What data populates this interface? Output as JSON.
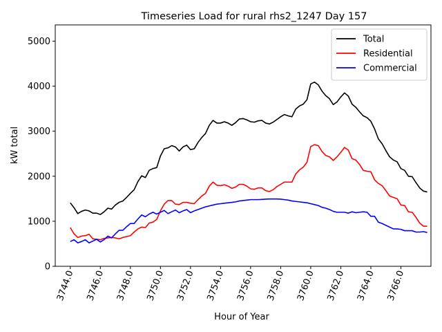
{
  "chart_data": {
    "type": "line",
    "title": "Timeseries Load for rural rhs2_1247  Day 157",
    "xlabel": "Hour of Year",
    "ylabel": "kW total",
    "xlim": [
      3743.0,
      3768.0
    ],
    "ylim": [
      0,
      5360
    ],
    "xticks": [
      3744.0,
      3746.0,
      3748.0,
      3750.0,
      3752.0,
      3754.0,
      3756.0,
      3758.0,
      3760.0,
      3762.0,
      3764.0,
      3766.0
    ],
    "xtick_labels": [
      "3744.0",
      "3746.0",
      "3748.0",
      "3750.0",
      "3752.0",
      "3754.0",
      "3756.0",
      "3758.0",
      "3760.0",
      "3762.0",
      "3764.0",
      "3766.0"
    ],
    "yticks": [
      0,
      1000,
      2000,
      3000,
      4000,
      5000
    ],
    "ytick_labels": [
      "0",
      "1000",
      "2000",
      "3000",
      "4000",
      "5000"
    ],
    "legend_position": "top-right",
    "x_start": 3744.0,
    "x_step": 0.25,
    "series": [
      {
        "name": "Total",
        "color": "#000000",
        "values": [
          1410,
          1300,
          1170,
          1220,
          1250,
          1230,
          1180,
          1180,
          1150,
          1210,
          1290,
          1270,
          1360,
          1420,
          1450,
          1530,
          1620,
          1700,
          1880,
          2010,
          1970,
          2130,
          2170,
          2190,
          2450,
          2610,
          2630,
          2680,
          2650,
          2560,
          2650,
          2690,
          2590,
          2610,
          2750,
          2860,
          2950,
          3130,
          3240,
          3180,
          3180,
          3210,
          3180,
          3130,
          3190,
          3270,
          3280,
          3250,
          3210,
          3200,
          3230,
          3240,
          3180,
          3160,
          3200,
          3260,
          3320,
          3370,
          3340,
          3320,
          3490,
          3560,
          3600,
          3700,
          4050,
          4090,
          4030,
          3890,
          3790,
          3720,
          3590,
          3650,
          3760,
          3850,
          3780,
          3600,
          3530,
          3430,
          3340,
          3300,
          3220,
          3050,
          2830,
          2720,
          2570,
          2430,
          2360,
          2320,
          2170,
          2130,
          2000,
          1990,
          1860,
          1740,
          1670,
          1650
        ]
      },
      {
        "name": "Residential",
        "color": "#ff0000",
        "values": [
          860,
          720,
          640,
          670,
          680,
          710,
          610,
          600,
          590,
          620,
          630,
          640,
          630,
          610,
          640,
          660,
          680,
          760,
          830,
          870,
          860,
          960,
          980,
          1040,
          1230,
          1380,
          1460,
          1460,
          1380,
          1370,
          1420,
          1420,
          1400,
          1390,
          1480,
          1560,
          1620,
          1780,
          1870,
          1800,
          1790,
          1810,
          1780,
          1730,
          1760,
          1820,
          1820,
          1780,
          1720,
          1710,
          1740,
          1740,
          1680,
          1660,
          1700,
          1770,
          1820,
          1870,
          1870,
          1870,
          2050,
          2140,
          2200,
          2310,
          2660,
          2700,
          2680,
          2550,
          2460,
          2430,
          2350,
          2430,
          2530,
          2640,
          2580,
          2390,
          2360,
          2260,
          2130,
          2110,
          2100,
          1920,
          1840,
          1790,
          1680,
          1560,
          1530,
          1500,
          1360,
          1350,
          1210,
          1200,
          1090,
          960,
          890,
          890
        ]
      },
      {
        "name": "Commercial",
        "color": "#0000ff",
        "values": [
          550,
          590,
          520,
          550,
          590,
          520,
          560,
          600,
          540,
          590,
          670,
          630,
          720,
          800,
          800,
          880,
          950,
          950,
          1050,
          1140,
          1100,
          1160,
          1200,
          1160,
          1200,
          1240,
          1170,
          1210,
          1250,
          1190,
          1230,
          1260,
          1190,
          1230,
          1260,
          1290,
          1320,
          1340,
          1360,
          1380,
          1390,
          1400,
          1410,
          1420,
          1430,
          1450,
          1460,
          1470,
          1480,
          1480,
          1480,
          1485,
          1490,
          1495,
          1495,
          1495,
          1490,
          1480,
          1470,
          1450,
          1440,
          1430,
          1420,
          1410,
          1390,
          1370,
          1350,
          1310,
          1290,
          1260,
          1220,
          1200,
          1200,
          1200,
          1180,
          1210,
          1190,
          1200,
          1210,
          1200,
          1110,
          1110,
          980,
          950,
          910,
          870,
          830,
          830,
          820,
          790,
          790,
          790,
          760,
          760,
          770,
          750
        ]
      }
    ]
  }
}
